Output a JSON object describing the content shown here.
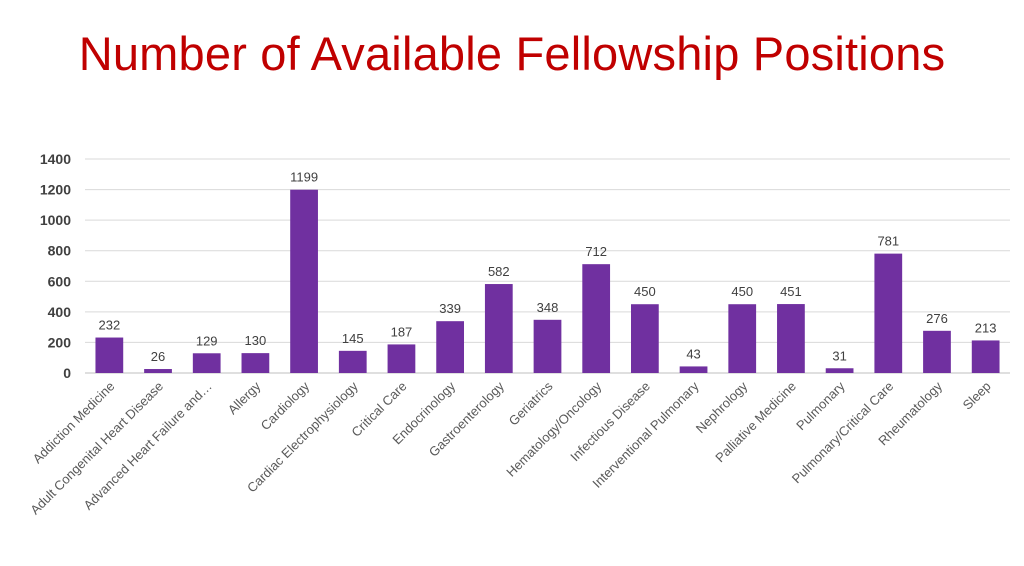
{
  "chart_data": {
    "type": "bar",
    "title": "Number of Available Fellowship Positions",
    "categories": [
      "Addiction Medicine",
      "Adult Congenital Heart Disease",
      "Advanced Heart Failure and…",
      "Allergy",
      "Cardiology",
      "Cardiac Electrophysiology",
      "Critical Care",
      "Endocrinology",
      "Gastroenterology",
      "Geriatrics",
      "Hematology/Oncology",
      "Infectious Disease",
      "Interventional Pulmonary",
      "Nephrology",
      "Palliative Medicine",
      "Pulmonary",
      "Pulmonary/Critical Care",
      "Rheumatology",
      "Sleep"
    ],
    "values": [
      232,
      26,
      129,
      130,
      1199,
      145,
      187,
      339,
      582,
      348,
      712,
      450,
      43,
      450,
      451,
      31,
      781,
      276,
      213
    ],
    "ylim": [
      0,
      1400
    ],
    "yticks": [
      0,
      200,
      400,
      600,
      800,
      1000,
      1200,
      1400
    ],
    "grid": true,
    "legend": "none",
    "bar_color": "#7030a0"
  }
}
